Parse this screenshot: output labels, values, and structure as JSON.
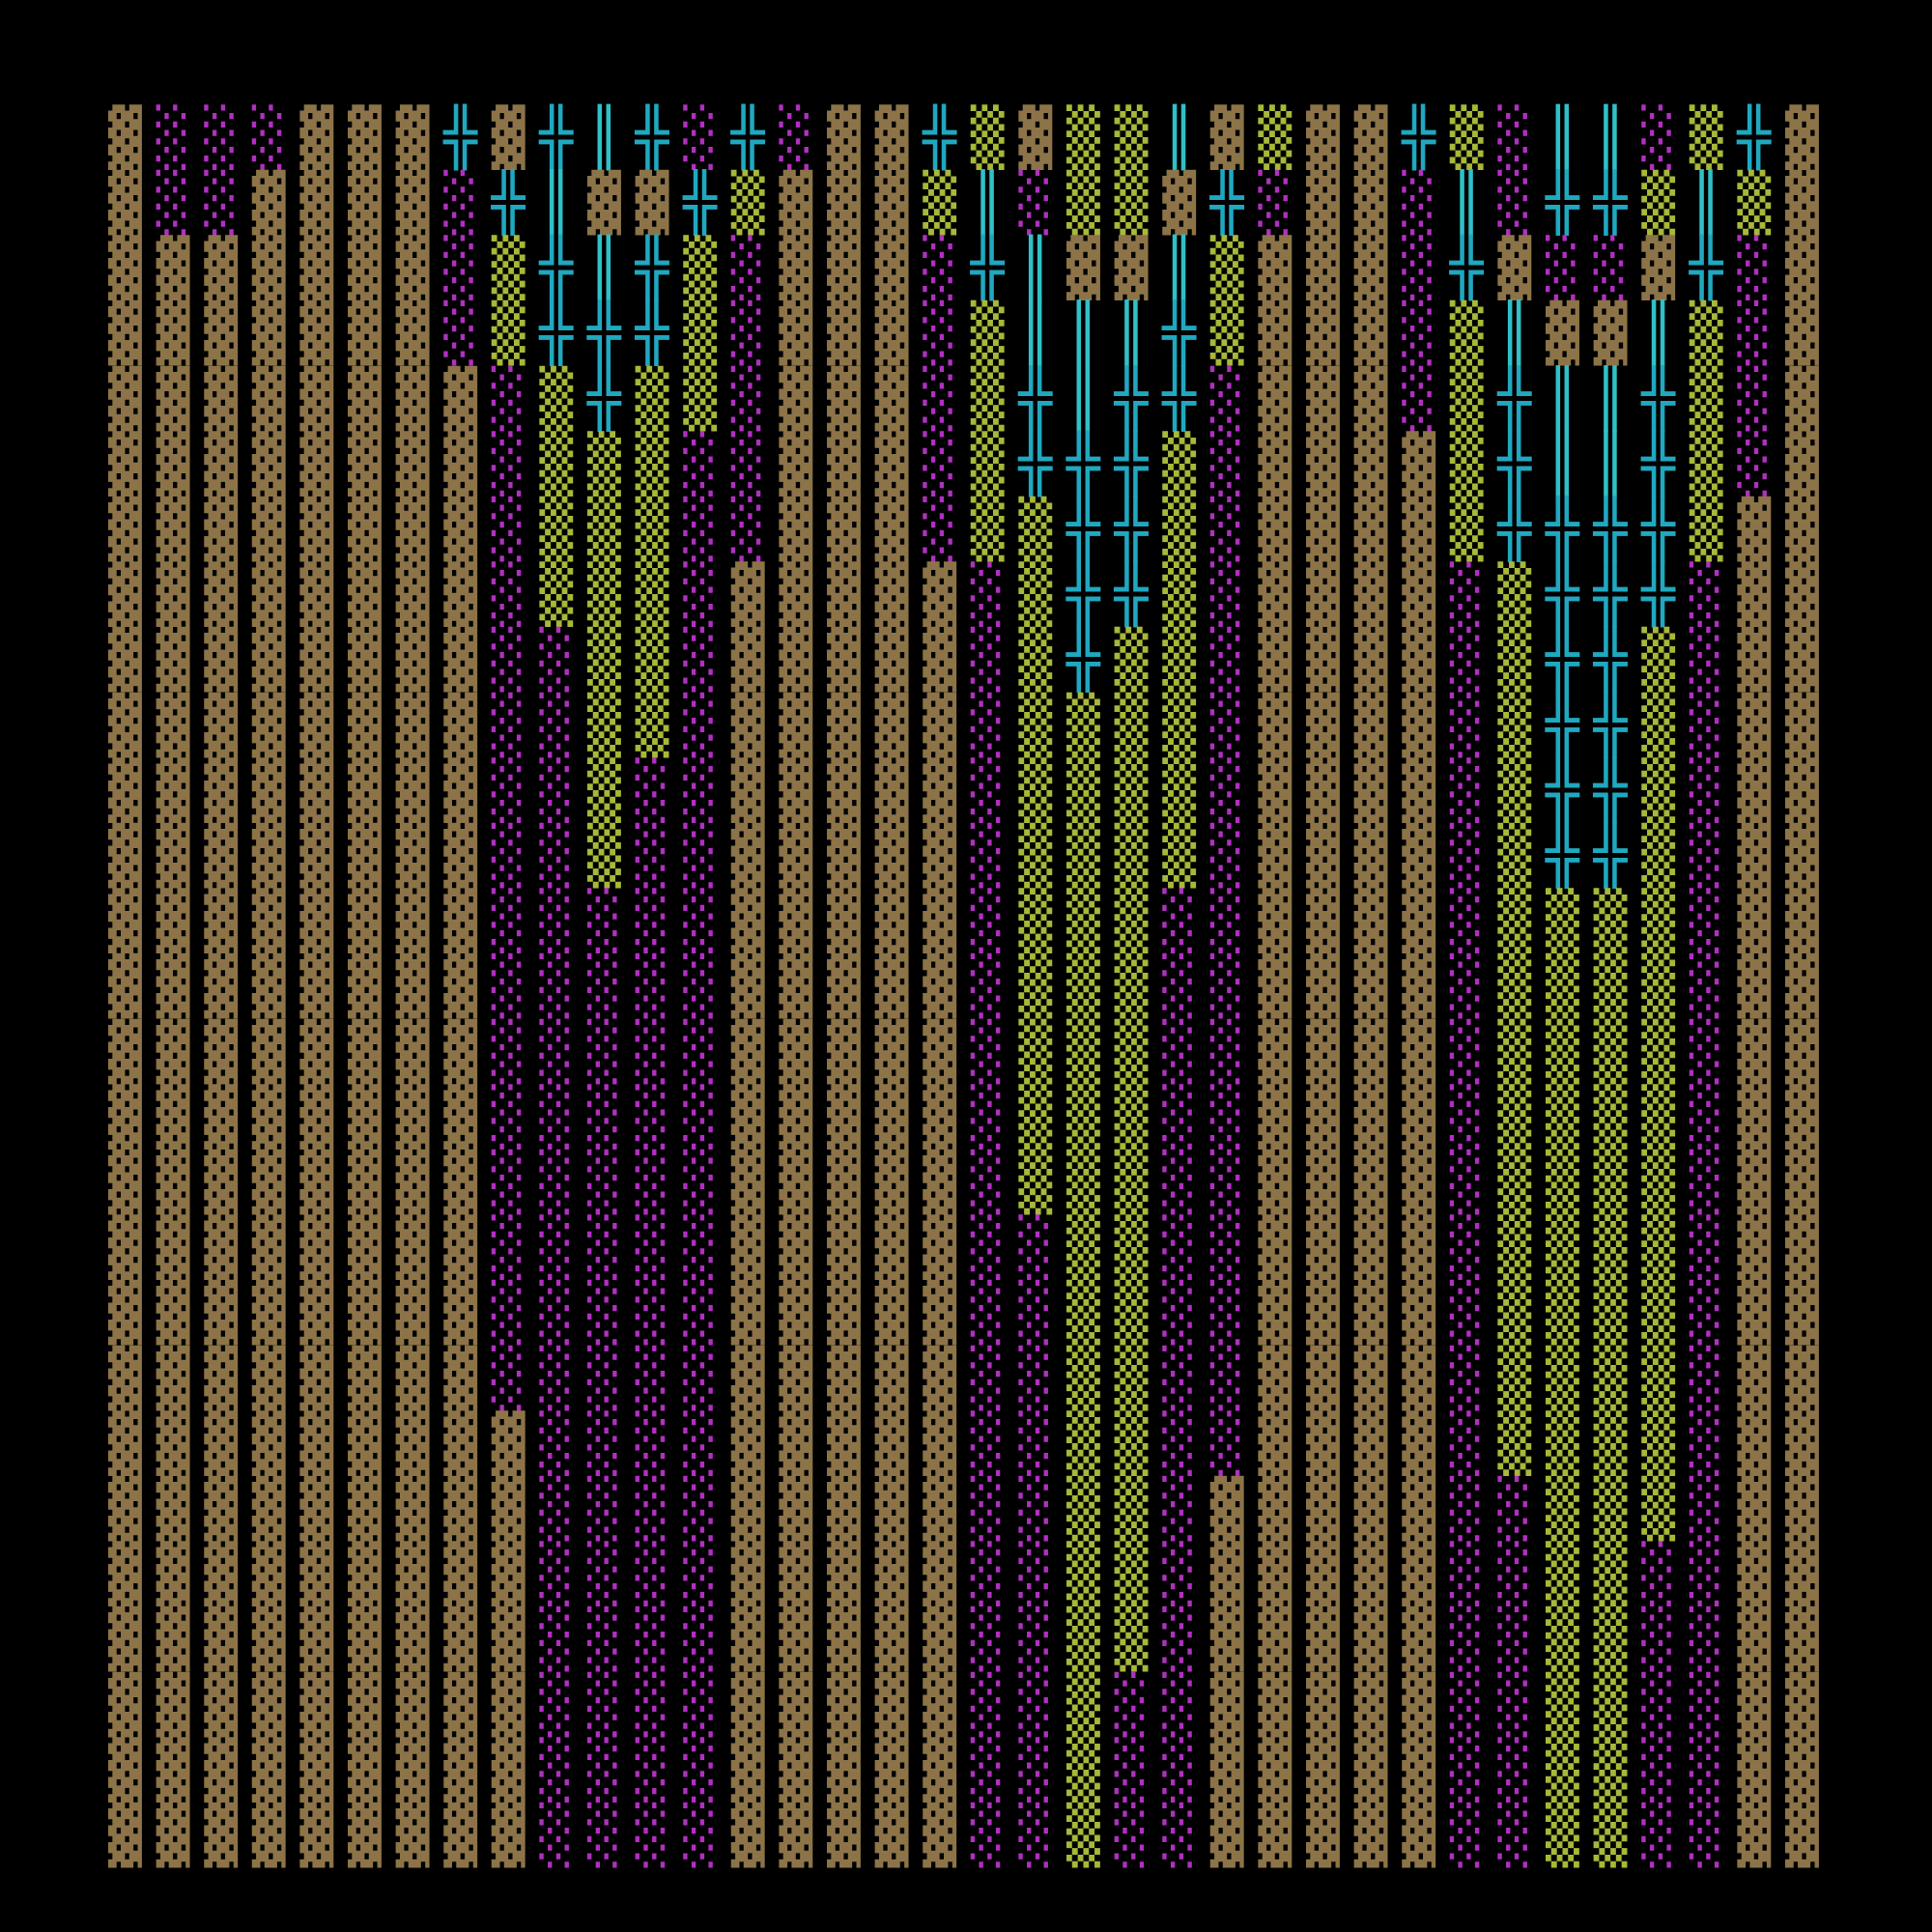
{
  "map": {
    "palette": {
      "▓": "#8c7448",
      "░": "#b030c0",
      "▒": "#a8b838",
      "╬": "#20a8c0",
      "║": "#30c0c8"
    },
    "background": "#000000",
    "rows": [
      "▓░░░▓▓▓╬▓╬║╬░╬░▓▓╬▒▓▒▒║▓▒▓▓╬▒░║║░▒╬▓",
      "▓░░▓▓▓▓░╬║▓▓╬▒▓▓▓▒║░▒▒▓╬░▓▓░║░╬╬▒║▒▓",
      "▓▓▓▓▓▓▓░▒╬║╬▒░▓▓▓░╬║▓▓║▒▓▓▓░╬▓░░▓╬░▓",
      "▓▓▓▓▓▓▓░▒╬╬╬▒░▓▓▓░▒║║║╬▒▓▓▓░▒║▓▓║▒░▓",
      "▓▓▓▓▓▓▓▓░▒╬▒▒░▓▓▓░▒╬║╬╬░▓▓▓░▒╬║║╬▒░▓",
      "▓▓▓▓▓▓▓▓░▒▒▒░░▓▓▓░▒╬╬╬▒░▓▓▓▓▒╬║║╬▒░▓",
      "▓▓▓▓▓▓▓▓░▒▒▒░░▓▓▓░▒▒╬╬▒░▓▓▓▓▒╬╬╬╬▒▓▓",
      "▓▓▓▓▓▓▓▓░▒▒▒░▓▓▓▓▓░▒╬╬▒░▓▓▓▓░▒╬╬╬░▓▓",
      "▓▓▓▓▓▓▓▓░░▒▒░▓▓▓▓▓░▒╬▒▒░▓▓▓▓░▒╬╬▒░▓▓",
      "▓▓▓▓▓▓▓▓░░▒▒░▓▓▓▓▓░▒▒▒▒░▓▓▓▓░▒╬╬▒░▓▓",
      "▓▓▓▓▓▓▓▓░░▒░░▓▓▓▓▓░▒▒▒▒░▓▓▓▓░▒╬╬▒░▓▓",
      "▓▓▓▓▓▓▓▓░░▒░░▓▓▓▓▓░▒▒▒▒░▓▓▓▓░▒╬╬▒░▓▓",
      "▓▓▓▓▓▓▓▓░░░░░▓▓▓▓▓░▒▒▒░░▓▓▓▓░▒▒▒▒░▓▓",
      "▓▓▓▓▓▓▓▓░░░░░▓▓▓▓▓░▒▒▒░░▓▓▓▓░▒▒▒▒░▓▓",
      "▓▓▓▓▓▓▓▓░░░░░▓▓▓▓▓░▒▒▒░░▓▓▓▓░▒▒▒▒░▓▓",
      "▓▓▓▓▓▓▓▓░░░░░▓▓▓▓▓░▒▒▒░░▓▓▓▓░▒▒▒▒░▓▓",
      "▓▓▓▓▓▓▓▓░░░░░▓▓▓▓▓░▒▒▒░░▓▓▓▓░▒▒▒▒░▓▓",
      "▓▓▓▓▓▓▓▓░░░░░▓▓▓▓▓░░▒▒░░▓▓▓▓░▒▒▒▒░▓▓",
      "▓▓▓▓▓▓▓▓░░░░░▓▓▓▓▓░░▒▒░░▓▓▓▓░▒▒▒▒░▓▓",
      "▓▓▓▓▓▓▓▓░░░░░▓▓▓▓▓░░▒▒░░▓▓▓▓░▒▒▒▒░▓▓",
      "▓▓▓▓▓▓▓▓▓░░░░▓▓▓▓▓░░▒▒░░▓▓▓▓░▒▒▒▒░▓▓",
      "▓▓▓▓▓▓▓▓▓░░░░▓▓▓▓▓░░▒▒░▓▓▓▓▓░░▒▒▒░▓▓",
      "▓▓▓▓▓▓▓▓▓░░░░▓▓▓▓▓░░▒▒░▓▓▓▓▓░░▒▒░░▓▓",
      "▓▓▓▓▓▓▓▓▓░░░░▓▓▓▓▓░░▒▒░▓▓▓▓▓░░▒▒░░▓▓",
      "▓▓▓▓▓▓▓▓▓░░░░▓▓▓▓▓░░▒░░▓▓▓▓▓░░▒▒░░▓▓",
      "▓▓▓▓▓▓▓▓▓░░░░▓▓▓▓▓░░▒░░▓▓▓▓▓░░▒▒░░▓▓",
      "▓▓▓▓▓▓▓▓▓░░░░▓▓▓▓▓░░▒░░▓▓▓▓▓░░▒▒░░▓▓"
    ]
  }
}
